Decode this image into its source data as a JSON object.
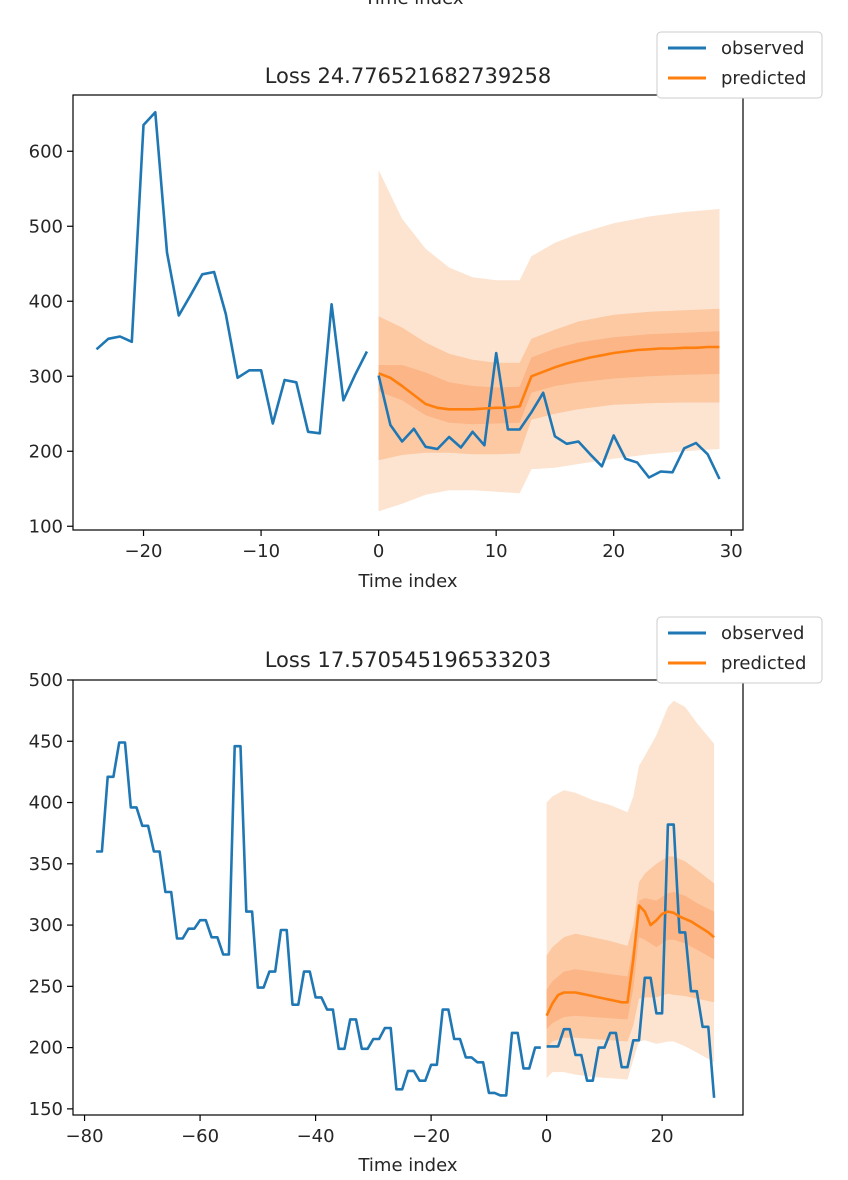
{
  "top_cut_label": "Time index",
  "chart_data": [
    {
      "type": "line",
      "title": "Loss 24.776521682739258",
      "xlabel": "Time index",
      "ylabel": "",
      "xlim": [
        -26,
        31
      ],
      "ylim": [
        95,
        675
      ],
      "xticks": [
        -20,
        -10,
        0,
        10,
        20,
        30
      ],
      "xtick_labels": [
        "−20",
        "−10",
        "0",
        "10",
        "20",
        "30"
      ],
      "yticks": [
        100,
        200,
        300,
        400,
        500,
        600
      ],
      "ytick_labels": [
        "100",
        "200",
        "300",
        "400",
        "500",
        "600"
      ],
      "legend": {
        "position": "top-right",
        "entries": [
          "observed",
          "predicted"
        ]
      },
      "colors": {
        "observed": "#1f77b4",
        "predicted": "#ff7f0e",
        "band_outer": "#fde4d0",
        "band_mid": "#fcc9a3",
        "band_inner": "#fbb586"
      },
      "series": [
        {
          "name": "observed",
          "x": [
            -24,
            -23,
            -22,
            -21,
            -20,
            -19,
            -18,
            -17,
            -16,
            -15,
            -14,
            -13,
            -12,
            -11,
            -10,
            -9,
            -8,
            -7,
            -6,
            -5,
            -4,
            -3,
            -2,
            -1
          ],
          "values": [
            336,
            350,
            353,
            346,
            635,
            652,
            465,
            381,
            408,
            436,
            439,
            383,
            298,
            308,
            308,
            237,
            295,
            292,
            226,
            224,
            396,
            268,
            302,
            333
          ]
        },
        {
          "name": "observed",
          "x": [
            0,
            1,
            2,
            3,
            4,
            5,
            6,
            7,
            8,
            9,
            10,
            11,
            12,
            13,
            14,
            15,
            16,
            17,
            18,
            19,
            20,
            21,
            22,
            23,
            24,
            25,
            26,
            27,
            28,
            29
          ],
          "values": [
            301,
            235,
            213,
            230,
            206,
            203,
            219,
            205,
            226,
            208,
            331,
            229,
            229,
            252,
            278,
            220,
            210,
            213,
            196,
            180,
            221,
            190,
            185,
            165,
            173,
            172,
            204,
            211,
            196,
            163
          ]
        },
        {
          "name": "predicted",
          "x": [
            0,
            1,
            2,
            3,
            4,
            5,
            6,
            7,
            8,
            9,
            10,
            11,
            12,
            13,
            14,
            15,
            16,
            17,
            18,
            19,
            20,
            21,
            22,
            23,
            24,
            25,
            26,
            27,
            28,
            29
          ],
          "values": [
            304,
            298,
            287,
            275,
            263,
            258,
            256,
            256,
            256,
            257,
            258,
            258,
            260,
            300,
            306,
            312,
            317,
            321,
            325,
            328,
            331,
            333,
            335,
            336,
            337,
            337,
            338,
            338,
            339,
            339
          ]
        }
      ],
      "bands": {
        "x": [
          0,
          2,
          4,
          6,
          8,
          10,
          12,
          13,
          15,
          17,
          20,
          23,
          26,
          29
        ],
        "outer_hi": [
          575,
          510,
          470,
          445,
          432,
          428,
          428,
          460,
          478,
          490,
          504,
          513,
          519,
          523
        ],
        "outer_lo": [
          120,
          130,
          142,
          148,
          148,
          146,
          144,
          176,
          178,
          183,
          190,
          196,
          200,
          203
        ],
        "mid_hi": [
          380,
          365,
          345,
          330,
          322,
          318,
          318,
          350,
          362,
          373,
          382,
          386,
          388,
          390
        ],
        "mid_lo": [
          188,
          195,
          198,
          198,
          196,
          196,
          197,
          242,
          250,
          256,
          262,
          264,
          265,
          265
        ],
        "inner_hi": [
          315,
          315,
          305,
          292,
          287,
          285,
          286,
          325,
          337,
          345,
          352,
          356,
          358,
          360
        ],
        "inner_lo": [
          280,
          268,
          248,
          238,
          236,
          237,
          238,
          278,
          287,
          292,
          297,
          300,
          302,
          303
        ]
      }
    },
    {
      "type": "line",
      "title": "Loss 17.570545196533203",
      "xlabel": "Time index",
      "ylabel": "",
      "xlim": [
        -82,
        34
      ],
      "ylim": [
        145,
        500
      ],
      "xticks": [
        -80,
        -60,
        -40,
        -20,
        0,
        20
      ],
      "xtick_labels": [
        "−80",
        "−60",
        "−40",
        "−20",
        "0",
        "20"
      ],
      "yticks": [
        150,
        200,
        250,
        300,
        350,
        400,
        450,
        500
      ],
      "ytick_labels": [
        "150",
        "200",
        "250",
        "300",
        "350",
        "400",
        "450",
        "500"
      ],
      "legend": {
        "position": "top-right",
        "entries": [
          "observed",
          "predicted"
        ]
      },
      "colors": {
        "observed": "#1f77b4",
        "predicted": "#ff7f0e",
        "band_outer": "#fde4d0",
        "band_mid": "#fcc9a3",
        "band_inner": "#fbb586"
      },
      "series": [
        {
          "name": "observed",
          "x": [
            -78,
            -77,
            -76,
            -75,
            -74,
            -73,
            -72,
            -71,
            -70,
            -69,
            -68,
            -67,
            -66,
            -65,
            -64,
            -63,
            -62,
            -61,
            -60,
            -59,
            -58,
            -57,
            -56,
            -55,
            -54,
            -53,
            -52,
            -51,
            -50,
            -49,
            -48,
            -47,
            -46,
            -45,
            -44,
            -43,
            -42,
            -41,
            -40,
            -39,
            -38,
            -37,
            -36,
            -35,
            -34,
            -33,
            -32,
            -31,
            -30,
            -29,
            -28,
            -27,
            -26,
            -25,
            -24,
            -23,
            -22,
            -21,
            -20,
            -19,
            -18,
            -17,
            -16,
            -15,
            -14,
            -13,
            -12,
            -11,
            -10,
            -9,
            -8,
            -7,
            -6,
            -5,
            -4,
            -3,
            -2,
            -1
          ],
          "values": [
            360,
            360,
            421,
            421,
            449,
            449,
            396,
            396,
            381,
            381,
            360,
            360,
            327,
            327,
            289,
            289,
            297,
            297,
            304,
            304,
            290,
            290,
            276,
            276,
            446,
            446,
            311,
            311,
            249,
            249,
            262,
            262,
            296,
            296,
            235,
            235,
            262,
            262,
            241,
            241,
            231,
            231,
            199,
            199,
            223,
            223,
            199,
            199,
            207,
            207,
            216,
            216,
            166,
            166,
            181,
            181,
            173,
            173,
            186,
            186,
            231,
            231,
            207,
            207,
            192,
            192,
            188,
            188,
            163,
            163,
            161,
            161,
            212,
            212,
            183,
            183,
            200,
            200
          ]
        },
        {
          "name": "observed",
          "x": [
            0,
            1,
            2,
            3,
            4,
            5,
            6,
            7,
            8,
            9,
            10,
            11,
            12,
            13,
            14,
            15,
            16,
            17,
            18,
            19,
            20,
            21,
            22,
            23,
            24,
            25,
            26,
            27,
            28,
            29
          ],
          "values": [
            201,
            201,
            201,
            215,
            215,
            194,
            194,
            173,
            173,
            200,
            200,
            212,
            212,
            184,
            184,
            206,
            206,
            257,
            257,
            228,
            228,
            382,
            382,
            294,
            294,
            246,
            246,
            217,
            217,
            159
          ]
        },
        {
          "name": "predicted",
          "x": [
            0,
            1,
            2,
            3,
            4,
            5,
            6,
            7,
            8,
            9,
            10,
            11,
            12,
            13,
            14,
            15,
            16,
            17,
            18,
            19,
            20,
            21,
            22,
            23,
            24,
            25,
            26,
            27,
            28,
            29
          ],
          "values": [
            226,
            236,
            243,
            245,
            245,
            245,
            244,
            243,
            242,
            241,
            240,
            239,
            238,
            237,
            237,
            272,
            316,
            311,
            300,
            304,
            309,
            311,
            310,
            307,
            305,
            303,
            300,
            297,
            294,
            290
          ]
        }
      ],
      "bands": {
        "x": [
          0,
          1,
          3,
          5,
          8,
          11,
          14,
          15,
          16,
          17,
          19,
          21,
          22,
          24,
          26,
          29
        ],
        "outer_hi": [
          400,
          405,
          410,
          408,
          402,
          398,
          392,
          405,
          430,
          438,
          455,
          478,
          483,
          478,
          465,
          448
        ],
        "outer_lo": [
          175,
          180,
          180,
          178,
          176,
          175,
          174,
          190,
          205,
          206,
          203,
          205,
          205,
          201,
          196,
          188
        ],
        "mid_hi": [
          275,
          282,
          290,
          293,
          290,
          287,
          283,
          300,
          335,
          342,
          350,
          356,
          356,
          352,
          345,
          334
        ],
        "mid_lo": [
          200,
          205,
          208,
          208,
          207,
          206,
          205,
          218,
          240,
          241,
          241,
          244,
          243,
          242,
          240,
          237
        ],
        "inner_hi": [
          247,
          254,
          262,
          264,
          262,
          260,
          258,
          283,
          320,
          322,
          320,
          326,
          327,
          324,
          318,
          311
        ],
        "inner_lo": [
          215,
          220,
          225,
          226,
          225,
          224,
          223,
          248,
          290,
          288,
          282,
          288,
          288,
          285,
          280,
          272
        ]
      }
    }
  ]
}
